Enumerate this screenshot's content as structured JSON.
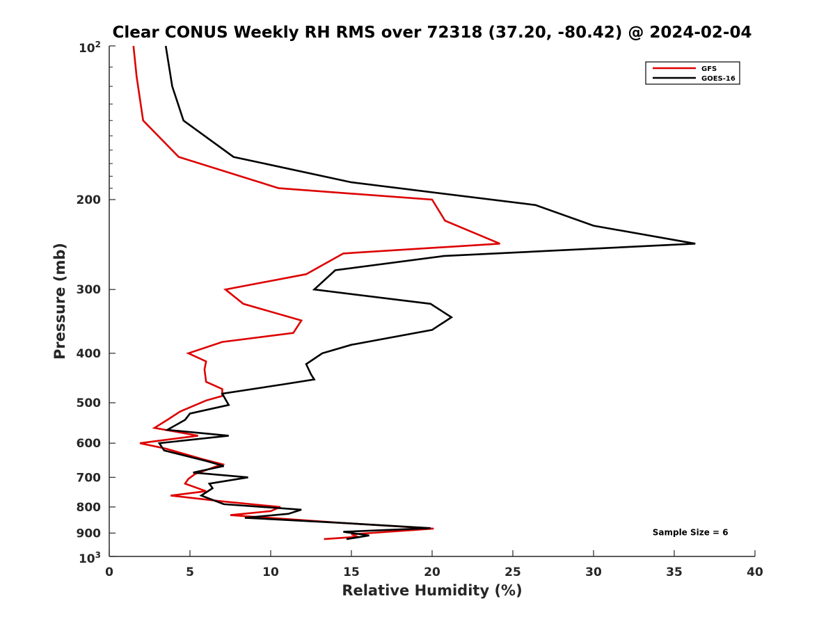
{
  "chart_data": {
    "type": "line",
    "title": "Clear CONUS Weekly RH RMS over 72318 (37.20, -80.42) @ 2024-02-04",
    "xlabel": "Relative Humidity (%)",
    "ylabel": "Pressure (mb)",
    "xlim": [
      0,
      40
    ],
    "ylim": [
      100,
      1000
    ],
    "y_scale": "log",
    "y_reversed": true,
    "x_ticks": [
      0,
      5,
      10,
      15,
      20,
      25,
      30,
      35,
      40
    ],
    "x_tick_labels": [
      "0",
      "5",
      "10",
      "15",
      "20",
      "25",
      "30",
      "35",
      "40"
    ],
    "y_ticks": [
      200,
      300,
      400,
      500,
      600,
      700,
      800,
      900
    ],
    "y_tick_labels": [
      "200",
      "300",
      "400",
      "500",
      "600",
      "700",
      "800",
      "900"
    ],
    "y_end_labels": {
      "top_base": "10",
      "top_exp": "2",
      "bottom_base": "10",
      "bottom_exp": "3"
    },
    "grid": false,
    "legend_position": "top-right",
    "series": [
      {
        "name": "GFS",
        "color": "#dd0000",
        "points": [
          [
            1.5,
            100
          ],
          [
            1.7,
            115
          ],
          [
            2.1,
            140
          ],
          [
            4.3,
            165
          ],
          [
            10.5,
            190
          ],
          [
            20.0,
            200
          ],
          [
            20.8,
            220
          ],
          [
            24.2,
            244
          ],
          [
            14.5,
            255
          ],
          [
            12.2,
            280
          ],
          [
            7.2,
            300
          ],
          [
            8.3,
            320
          ],
          [
            11.9,
            345
          ],
          [
            11.4,
            365
          ],
          [
            7.0,
            380
          ],
          [
            4.9,
            400
          ],
          [
            6.0,
            415
          ],
          [
            5.9,
            430
          ],
          [
            6.0,
            455
          ],
          [
            7.0,
            470
          ],
          [
            7.0,
            485
          ],
          [
            6.0,
            495
          ],
          [
            4.4,
            520
          ],
          [
            3.6,
            540
          ],
          [
            2.8,
            560
          ],
          [
            5.5,
            580
          ],
          [
            1.9,
            600
          ],
          [
            3.5,
            615
          ],
          [
            5.8,
            645
          ],
          [
            7.0,
            660
          ],
          [
            5.3,
            690
          ],
          [
            4.9,
            705
          ],
          [
            4.7,
            720
          ],
          [
            6.0,
            745
          ],
          [
            3.8,
            760
          ],
          [
            7.0,
            780
          ],
          [
            10.6,
            800
          ],
          [
            10.0,
            815
          ],
          [
            7.5,
            830
          ],
          [
            14.5,
            860
          ],
          [
            20.1,
            882
          ],
          [
            15.0,
            905
          ],
          [
            15.4,
            915
          ],
          [
            13.3,
            925
          ]
        ]
      },
      {
        "name": "GOES-16",
        "color": "#000000",
        "points": [
          [
            3.5,
            100
          ],
          [
            3.9,
            120
          ],
          [
            4.6,
            140
          ],
          [
            7.7,
            165
          ],
          [
            15.0,
            185
          ],
          [
            26.4,
            205
          ],
          [
            30.0,
            225
          ],
          [
            36.3,
            244
          ],
          [
            20.7,
            258
          ],
          [
            14.0,
            275
          ],
          [
            12.7,
            300
          ],
          [
            19.9,
            320
          ],
          [
            21.2,
            340
          ],
          [
            20.0,
            360
          ],
          [
            15.0,
            385
          ],
          [
            13.2,
            400
          ],
          [
            12.2,
            420
          ],
          [
            12.5,
            440
          ],
          [
            12.7,
            450
          ],
          [
            10.8,
            460
          ],
          [
            7.0,
            480
          ],
          [
            7.4,
            505
          ],
          [
            5.0,
            525
          ],
          [
            4.7,
            540
          ],
          [
            3.6,
            565
          ],
          [
            7.4,
            580
          ],
          [
            3.1,
            600
          ],
          [
            3.4,
            620
          ],
          [
            6.0,
            650
          ],
          [
            7.1,
            665
          ],
          [
            5.2,
            685
          ],
          [
            8.6,
            700
          ],
          [
            6.2,
            720
          ],
          [
            6.4,
            735
          ],
          [
            5.7,
            760
          ],
          [
            7.1,
            790
          ],
          [
            11.9,
            810
          ],
          [
            11.1,
            825
          ],
          [
            8.4,
            840
          ],
          [
            14.5,
            860
          ],
          [
            19.9,
            880
          ],
          [
            14.5,
            895
          ],
          [
            16.1,
            910
          ],
          [
            14.7,
            925
          ]
        ]
      }
    ],
    "annotations": [
      {
        "text": "Sample Size = 6",
        "x": 36.0,
        "y": 898
      }
    ]
  }
}
